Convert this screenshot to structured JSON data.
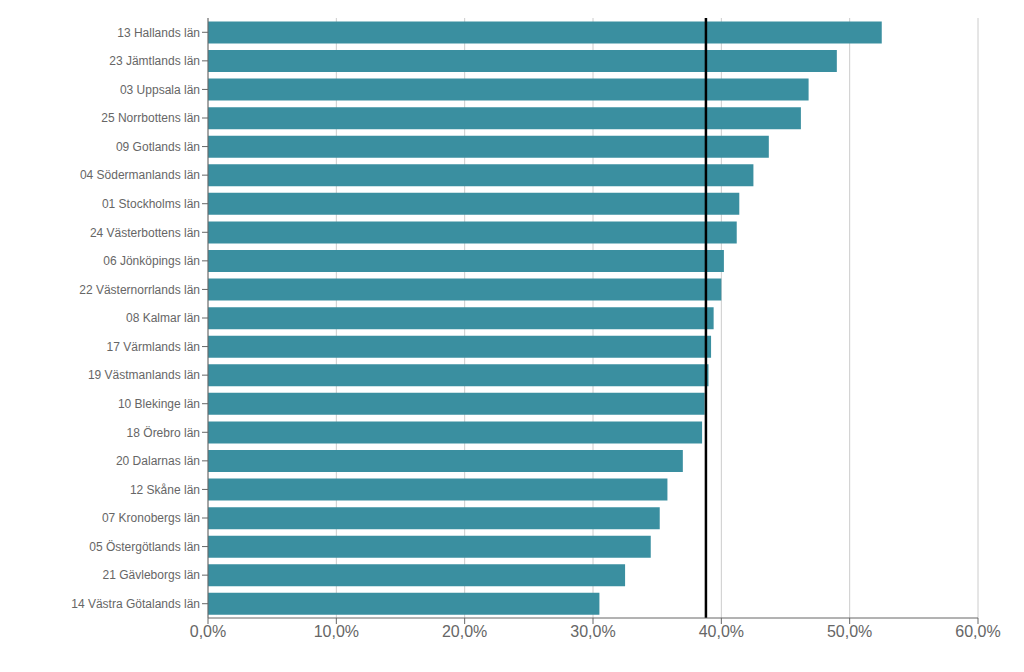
{
  "chart_data": {
    "type": "bar",
    "orientation": "horizontal",
    "categories": [
      "14 Västra Götalands län",
      "21 Gävleborgs län",
      "05 Östergötlands län",
      "07 Kronobergs län",
      "12 Skåne län",
      "20 Dalarnas län",
      "18 Örebro län",
      "10 Blekinge län",
      "19 Västmanlands län",
      "17 Värmlands län",
      "08 Kalmar län",
      "22 Västernorrlands län",
      "06 Jönköpings län",
      "24 Västerbottens län",
      "01 Stockholms län",
      "04 Södermanlands län",
      "09 Gotlands län",
      "25 Norrbottens län",
      "03 Uppsala län",
      "23 Jämtlands län",
      "13 Hallands län"
    ],
    "values": [
      0.305,
      0.325,
      0.345,
      0.352,
      0.358,
      0.37,
      0.385,
      0.387,
      0.39,
      0.392,
      0.394,
      0.4,
      0.402,
      0.412,
      0.414,
      0.425,
      0.437,
      0.462,
      0.468,
      0.49,
      0.525
    ],
    "color": "#3a8fa0",
    "xlim": [
      0,
      0.6
    ],
    "xticks": [
      {
        "value": 0.0,
        "label": "0,0%"
      },
      {
        "value": 0.1,
        "label": "10,0%"
      },
      {
        "value": 0.2,
        "label": "20,0%"
      },
      {
        "value": 0.3,
        "label": "30,0%"
      },
      {
        "value": 0.4,
        "label": "40,0%"
      },
      {
        "value": 0.5,
        "label": "50,0%"
      },
      {
        "value": 0.6,
        "label": "60,0%"
      }
    ],
    "reference_line": {
      "x": 0.388,
      "color": "#000000"
    },
    "grid": true
  }
}
